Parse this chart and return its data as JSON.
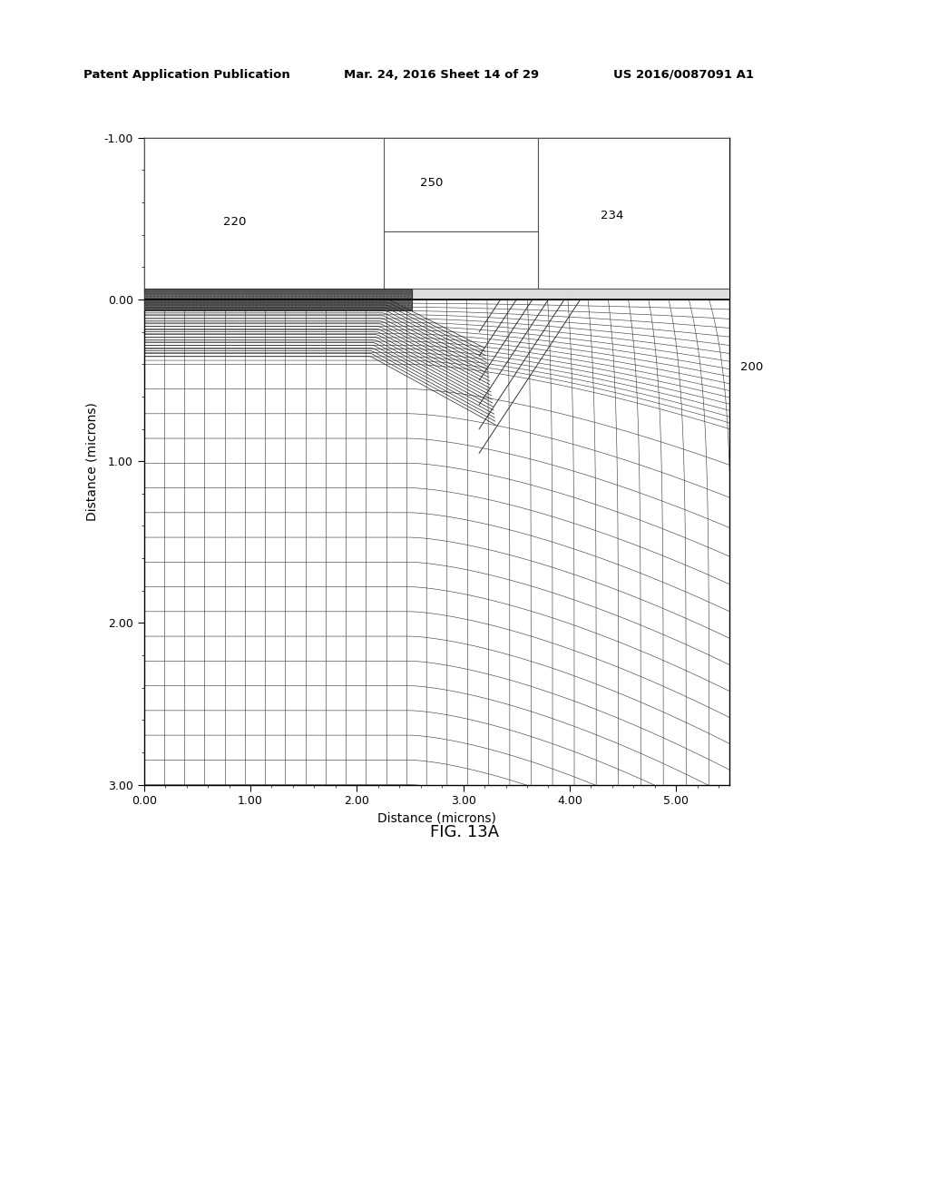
{
  "title_header": "Patent Application Publication",
  "date_header": "Mar. 24, 2016 Sheet 14 of 29",
  "patent_header": "US 2016/0087091 A1",
  "fig_label": "FIG. 13A",
  "xlabel": "Distance (microns)",
  "ylabel": "Distance (microns)",
  "xlim": [
    0.0,
    5.5
  ],
  "ylim": [
    -1.0,
    3.0
  ],
  "xticks": [
    0.0,
    1.0,
    2.0,
    3.0,
    4.0,
    5.0
  ],
  "yticks": [
    -1.0,
    0.0,
    1.0,
    2.0,
    3.0
  ],
  "xtick_labels": [
    "0.00",
    "1.00",
    "2.00",
    "3.00",
    "4.00",
    "5.00"
  ],
  "ytick_labels": [
    "-1.00",
    "0.00",
    "1.00",
    "2.00",
    "3.00"
  ],
  "label_220": "220",
  "label_250": "250",
  "label_234": "234",
  "label_200": "200",
  "background_color": "#ffffff"
}
